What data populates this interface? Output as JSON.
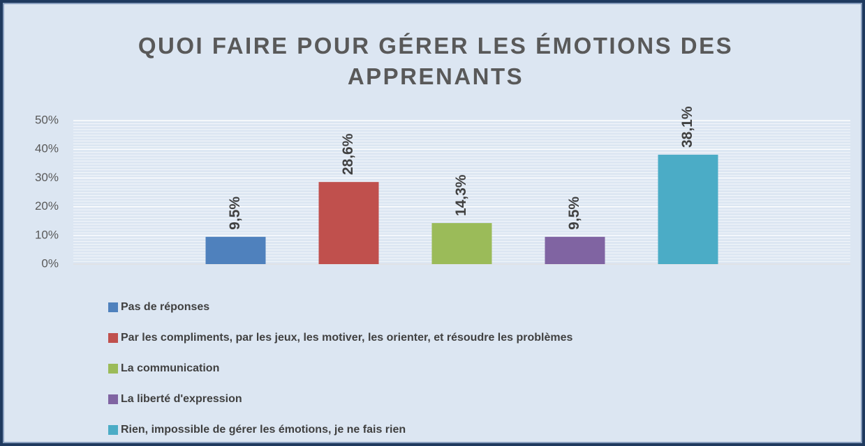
{
  "chart_data": {
    "type": "bar",
    "title": "QUOI FAIRE POUR GÉRER LES ÉMOTIONS DES APPRENANTS",
    "categories": [
      null
    ],
    "series": [
      {
        "name": "Pas de réponses",
        "color": "#4f81bd",
        "values": [
          9.5
        ],
        "value_labels": [
          "9,5%"
        ]
      },
      {
        "name": "Par les compliments, par les jeux, les motiver, les orienter, et résoudre les problèmes",
        "color": "#c0504d",
        "values": [
          28.6
        ],
        "value_labels": [
          "28,6%"
        ]
      },
      {
        "name": "La communication",
        "color": "#9bbb59",
        "values": [
          14.3
        ],
        "value_labels": [
          "14,3%"
        ]
      },
      {
        "name": "La liberté d'expression",
        "color": "#8064a2",
        "values": [
          9.5
        ],
        "value_labels": [
          "9,5%"
        ]
      },
      {
        "name": "Rien, impossible de gérer les émotions, je ne fais rien",
        "color": "#4bacc6",
        "values": [
          38.1
        ],
        "value_labels": [
          "38,1%"
        ]
      }
    ],
    "ylim": [
      0,
      50
    ],
    "yticks": [
      {
        "value": 0,
        "label": "0%"
      },
      {
        "value": 10,
        "label": "10%"
      },
      {
        "value": 20,
        "label": "20%"
      },
      {
        "value": 30,
        "label": "30%"
      },
      {
        "value": 40,
        "label": "40%"
      },
      {
        "value": 50,
        "label": "50%"
      }
    ],
    "grid": true,
    "legend": "bottom"
  }
}
